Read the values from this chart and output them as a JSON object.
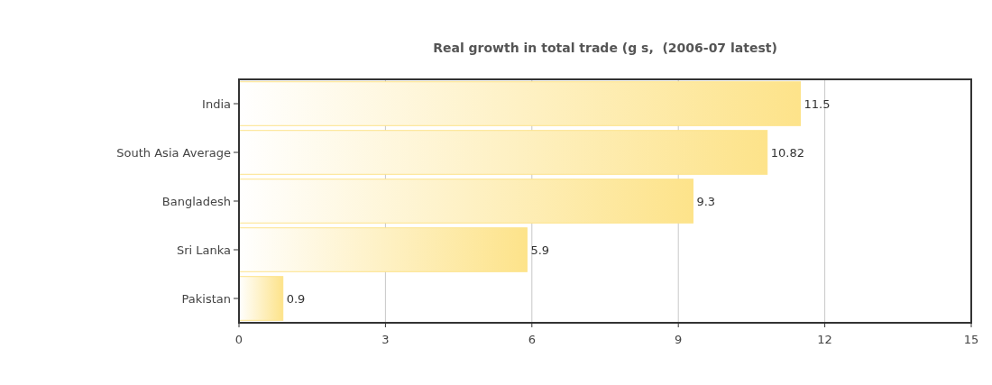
{
  "chart_data": {
    "type": "bar",
    "orientation": "horizontal",
    "title": "Real growth in total trade (g s,  (2006-07 latest)",
    "categories": [
      "India",
      "South Asia Average",
      "Bangladesh",
      "Sri Lanka",
      "Pakistan"
    ],
    "values": [
      11.5,
      10.82,
      9.3,
      5.9,
      0.9
    ],
    "color": "#fde38a",
    "xlim": [
      0,
      15
    ],
    "xticks": [
      0,
      3,
      6,
      9,
      12,
      15
    ],
    "grid": "x",
    "data_labels": true
  }
}
